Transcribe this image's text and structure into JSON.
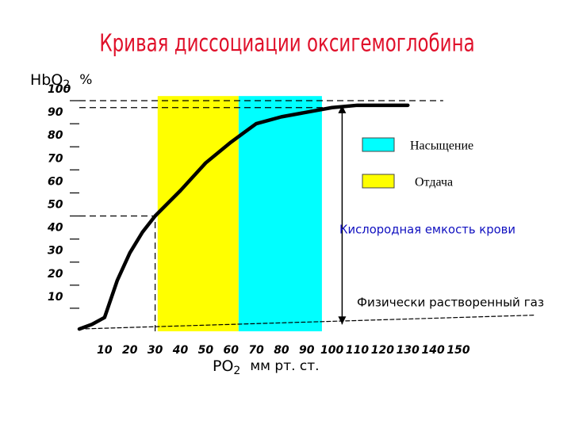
{
  "chart_data": {
    "type": "line",
    "title": "Кривая  диссоциации оксигемоглобина",
    "y_label": {
      "main": "HbO",
      "sub": "2",
      "unit": "%"
    },
    "x_label": {
      "main": "PO",
      "sub": "2",
      "unit": "мм рт. ст."
    },
    "xlim": [
      0,
      150
    ],
    "ylim": [
      0,
      100
    ],
    "xticks": [
      10,
      20,
      30,
      40,
      50,
      60,
      70,
      80,
      90,
      100,
      110,
      120,
      130,
      140,
      150
    ],
    "yticks": [
      10,
      20,
      30,
      40,
      50,
      60,
      70,
      80,
      90,
      100
    ],
    "bands": [
      {
        "name": "Насыщение",
        "color": "#00ffff",
        "x": [
          63,
          96
        ],
        "y": [
          0,
          102
        ]
      },
      {
        "name": "Отдача",
        "color": "#ffff00",
        "x": [
          31,
          63
        ],
        "y": [
          0,
          102
        ]
      }
    ],
    "series": [
      {
        "color": "#000000",
        "x": [
          0,
          5,
          10,
          15,
          20,
          25,
          30,
          40,
          50,
          60,
          65,
          70,
          80,
          90,
          100,
          110,
          120,
          130
        ],
        "values": [
          1,
          3,
          6,
          22,
          34,
          43,
          50,
          61,
          73,
          82,
          86,
          90,
          93,
          95,
          97,
          98,
          98,
          98
        ]
      },
      {
        "color": "#000000",
        "dashed": true,
        "x": [
          0,
          180
        ],
        "values": [
          1,
          7
        ]
      }
    ],
    "reference_lines": [
      {
        "axis": "y",
        "value": 100,
        "from": 0,
        "to": 144
      },
      {
        "axis": "y",
        "value": 97,
        "from": 0,
        "to": 104
      },
      {
        "axis": "y",
        "value": 50,
        "from": 0,
        "to": 30
      },
      {
        "axis": "x",
        "value": 30,
        "from": 0,
        "to": 50
      }
    ],
    "capacity_arrow": {
      "x": 104,
      "y": [
        98,
        3
      ]
    },
    "annotations": [
      "Кислородная емкость крови",
      "Физически растворенный газ"
    ]
  }
}
